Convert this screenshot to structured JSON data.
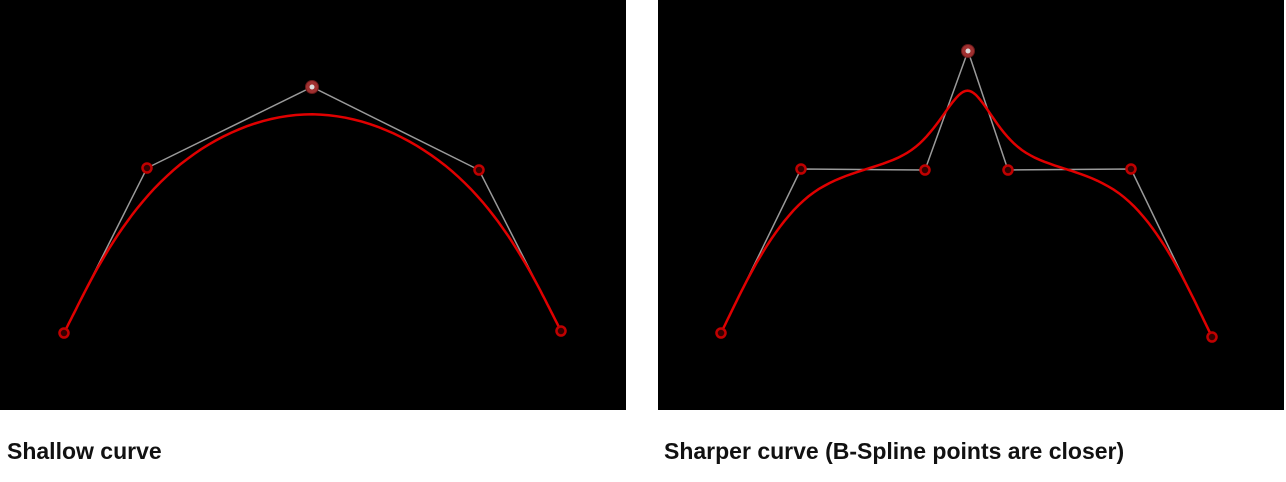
{
  "captions": {
    "left": "Shallow curve",
    "right": "Sharper curve (B-Spline points are closer)"
  },
  "colors": {
    "background": "#000000",
    "curve": "#e00000",
    "control_polygon": "#9a9a9a",
    "control_point": "#c00000",
    "selected_point": "#a03030"
  }
}
